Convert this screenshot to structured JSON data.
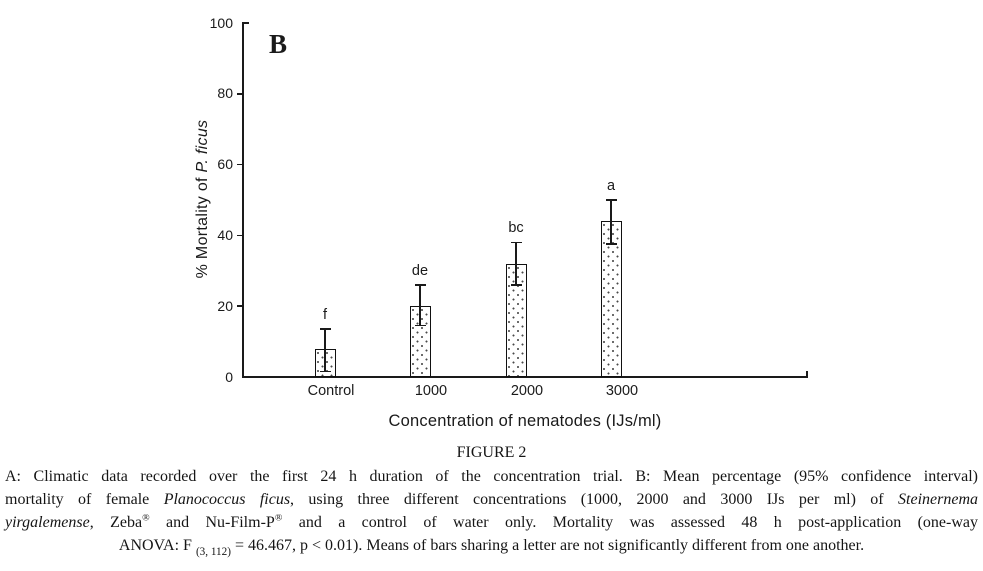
{
  "chart_data": {
    "type": "bar",
    "panel_label": "B",
    "categories": [
      "Control",
      "1000",
      "2000",
      "3000"
    ],
    "values": [
      8,
      20,
      32,
      44
    ],
    "ci_upper": [
      13.5,
      26,
      38,
      50
    ],
    "ci_lower": [
      1.5,
      14.5,
      26,
      37.5
    ],
    "sig_letters": [
      "f",
      "de",
      "bc",
      "a"
    ],
    "xlabel": "Concentration of nematodes (IJs/ml)",
    "ylabel_prefix": "% Mortality of ",
    "ylabel_italic": "P. ficus",
    "ylim": [
      0,
      100
    ],
    "yticks": [
      0,
      20,
      40,
      60,
      80,
      100
    ],
    "grid": "off",
    "legend": "none",
    "bar_fill": "white with dotted stipple pattern",
    "bar_outline_color": "#111111",
    "axis_color": "#1a1a1a",
    "error_bar_type": "95% confidence interval"
  },
  "caption": {
    "title": "FIGURE 2",
    "lines": [
      [
        {
          "t": "A: Climatic data recorded over the first 24 h duration of the concentration trial. B: Mean percentage (95% confidence interval)"
        }
      ],
      [
        {
          "t": "mortality of female "
        },
        {
          "t": "Planococcus ficus",
          "s": "i"
        },
        {
          "t": ", using three different concentrations (1000, 2000 and 3000 IJs per ml) of "
        },
        {
          "t": "Steinernema",
          "s": "i"
        }
      ],
      [
        {
          "t": "yirgalemense",
          "s": "i"
        },
        {
          "t": ", Zeba"
        },
        {
          "t": "®",
          "s": "sup"
        },
        {
          "t": " and Nu-Film-P"
        },
        {
          "t": "®",
          "s": "sup"
        },
        {
          "t": " and a control of water only. Mortality was assessed 48 h post-application (one-way"
        }
      ],
      [
        {
          "t": "ANOVA: F "
        },
        {
          "t": "(3, 112)",
          "s": "sub"
        },
        {
          "t": " = 46.467, p < 0.01). Means of bars sharing a letter are not significantly different from one another."
        }
      ]
    ]
  }
}
